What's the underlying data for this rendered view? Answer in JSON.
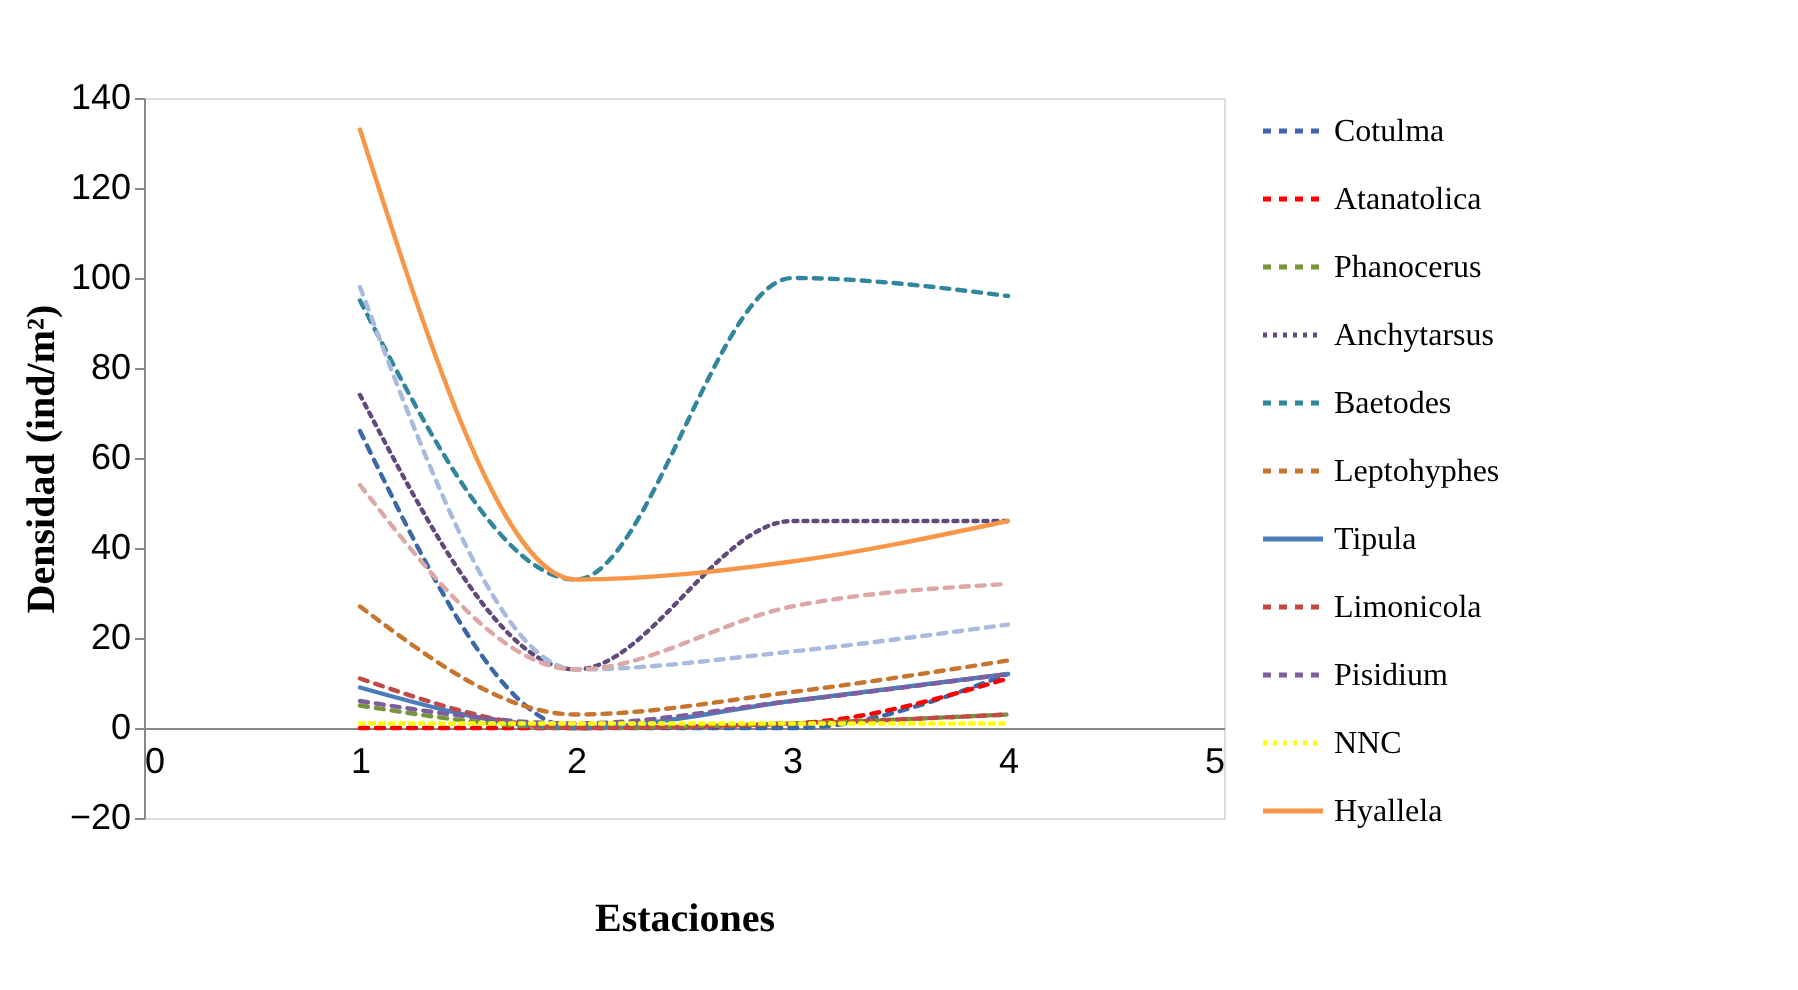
{
  "chart_data": {
    "type": "line",
    "xlabel": "Estaciones",
    "ylabel": "Densidad (ind/m²)",
    "xlim": [
      0,
      5
    ],
    "xticks": [
      0,
      1,
      2,
      3,
      4,
      5
    ],
    "ylim": [
      -20,
      140
    ],
    "yticks": [
      -20,
      0,
      20,
      40,
      60,
      80,
      100,
      120,
      140
    ],
    "grid": false,
    "legend": "right",
    "marker": "none",
    "x": [
      1,
      2,
      3,
      4
    ],
    "series": [
      {
        "name": "Cotulma",
        "color": "#3a67a8",
        "line_style": "dashed",
        "values": [
          66,
          0,
          0,
          12
        ]
      },
      {
        "name": "Atanatolica",
        "color": "#ff0000",
        "line_style": "dashed",
        "values": [
          0,
          0,
          1,
          11
        ]
      },
      {
        "name": "Phanocerus",
        "color": "#77933c",
        "line_style": "dashed",
        "values": [
          5,
          0,
          1,
          3
        ]
      },
      {
        "name": "Anchytarsus",
        "color": "#604a7b",
        "line_style": "dotted",
        "values": [
          74,
          13,
          46,
          46
        ]
      },
      {
        "name": "Baetodes",
        "color": "#31859c",
        "line_style": "dashed",
        "values": [
          95,
          33,
          100,
          96
        ]
      },
      {
        "name": "Leptohyphes",
        "color": "#c7742e",
        "line_style": "dashed",
        "values": [
          27,
          3,
          8,
          15
        ]
      },
      {
        "name": "Tipula",
        "color": "#4a7ebb",
        "line_style": "solid",
        "values": [
          9,
          0,
          6,
          12
        ]
      },
      {
        "name": "Limonicola",
        "color": "#be4b48",
        "line_style": "dashed",
        "values": [
          11,
          0,
          1,
          3
        ]
      },
      {
        "name": "Pisidium",
        "color": "#7d5fa0",
        "line_style": "dashed",
        "values": [
          6,
          1,
          6,
          12
        ]
      },
      {
        "name": "NNC",
        "color": "#ffff00",
        "line_style": "dotted",
        "values": [
          1,
          1,
          1,
          1
        ]
      },
      {
        "name": "Hyallela",
        "color": "#f79646",
        "line_style": "solid",
        "values": [
          133,
          33,
          37,
          46
        ]
      },
      {
        "color": "#a6bbde",
        "line_style": "dashed",
        "values": [
          98,
          13,
          17,
          23
        ]
      },
      {
        "color": "#dca8a6",
        "line_style": "dashed",
        "values": [
          54,
          13,
          27,
          32
        ]
      }
    ]
  }
}
